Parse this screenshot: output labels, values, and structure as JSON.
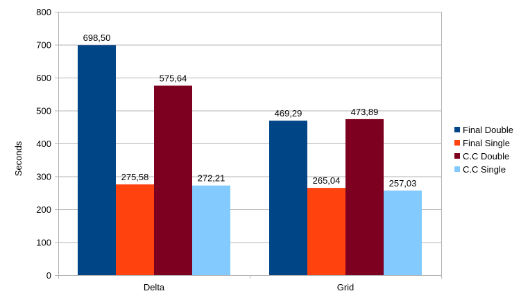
{
  "chart_data": {
    "type": "bar",
    "categories": [
      "Delta",
      "Grid"
    ],
    "series": [
      {
        "name": "Final Double",
        "values": [
          698.5,
          469.29
        ],
        "labels": [
          "698,50",
          "469,29"
        ],
        "color": "#004586"
      },
      {
        "name": "Final Single",
        "values": [
          275.58,
          265.04
        ],
        "labels": [
          "275,58",
          "265,04"
        ],
        "color": "#ff420e"
      },
      {
        "name": "C.C Double",
        "values": [
          575.64,
          473.89
        ],
        "labels": [
          "575,64",
          "473,89"
        ],
        "color": "#7e0021"
      },
      {
        "name": "C.C Single",
        "values": [
          272.21,
          257.03
        ],
        "labels": [
          "272,21",
          "257,03"
        ],
        "color": "#83caff"
      }
    ],
    "ylabel": "Seconds",
    "xlabel": "",
    "ylim": [
      0,
      800
    ],
    "yticks": [
      0,
      100,
      200,
      300,
      400,
      500,
      600,
      700,
      800
    ],
    "grid": true,
    "legend": "right"
  }
}
